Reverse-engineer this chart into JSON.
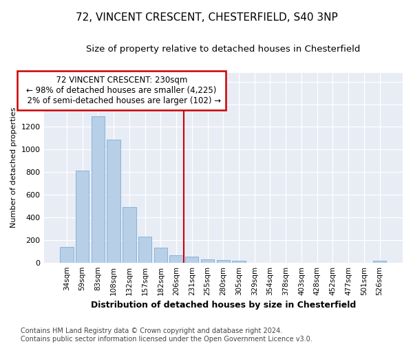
{
  "title": "72, VINCENT CRESCENT, CHESTERFIELD, S40 3NP",
  "subtitle": "Size of property relative to detached houses in Chesterfield",
  "xlabel": "Distribution of detached houses by size in Chesterfield",
  "ylabel": "Number of detached properties",
  "footer_line1": "Contains HM Land Registry data © Crown copyright and database right 2024.",
  "footer_line2": "Contains public sector information licensed under the Open Government Licence v3.0.",
  "property_label": "72 VINCENT CRESCENT: 230sqm",
  "pct_smaller": "98% of detached houses are smaller (4,225)",
  "pct_larger": "2% of semi-detached houses are larger (102)",
  "bar_categories": [
    "34sqm",
    "59sqm",
    "83sqm",
    "108sqm",
    "132sqm",
    "157sqm",
    "182sqm",
    "206sqm",
    "231sqm",
    "255sqm",
    "280sqm",
    "305sqm",
    "329sqm",
    "354sqm",
    "378sqm",
    "403sqm",
    "428sqm",
    "452sqm",
    "477sqm",
    "501sqm",
    "526sqm"
  ],
  "bar_heights": [
    140,
    815,
    1295,
    1090,
    490,
    230,
    130,
    65,
    50,
    30,
    25,
    15,
    0,
    0,
    0,
    0,
    0,
    0,
    0,
    0,
    15
  ],
  "bar_color": "#b8cfe8",
  "bar_edgecolor": "#7aadd4",
  "vline_color": "#cc0000",
  "vline_index": 8,
  "annotation_box_edgecolor": "#cc0000",
  "ylim": [
    0,
    1680
  ],
  "bg_color": "#ffffff",
  "plot_bg_color": "#e8ecf5",
  "grid_color": "#ffffff",
  "title_fontsize": 11,
  "subtitle_fontsize": 9.5,
  "xlabel_fontsize": 9,
  "ylabel_fontsize": 8,
  "annotation_fontsize": 8.5,
  "footer_fontsize": 7
}
